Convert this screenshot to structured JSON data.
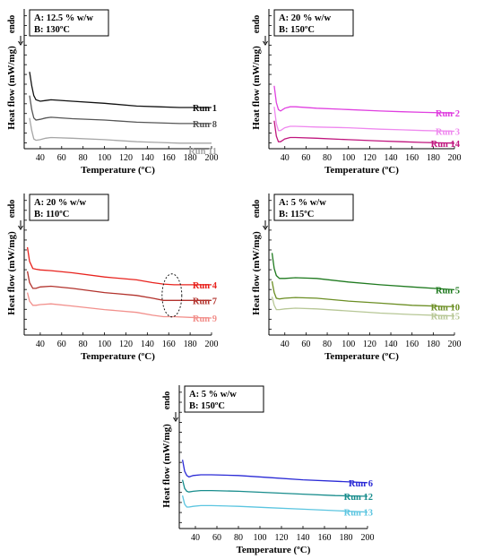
{
  "chart_data": [
    {
      "type": "line",
      "title": "",
      "box_lines": [
        "A: 12.5 % w/w",
        "B: 130ºC"
      ],
      "xlabel": "Temperature (ºC)",
      "ylabel": "Heat flow (mW/mg)",
      "endo_label": "endo",
      "xlim": [
        25,
        200
      ],
      "xticks": [
        40,
        60,
        80,
        100,
        120,
        140,
        160,
        180,
        200
      ],
      "ylim": [
        0,
        1
      ],
      "y_tick_count": 14,
      "series": [
        {
          "name": "Run 1",
          "color": "#111111",
          "x": [
            30,
            32,
            34,
            36,
            40,
            45,
            50,
            70,
            100,
            130,
            150,
            170,
            200
          ],
          "y": [
            0.55,
            0.45,
            0.38,
            0.35,
            0.34,
            0.345,
            0.35,
            0.34,
            0.325,
            0.305,
            0.3,
            0.295,
            0.295
          ]
        },
        {
          "name": "Run 8",
          "color": "#555555",
          "x": [
            30,
            32,
            34,
            36,
            40,
            45,
            50,
            70,
            100,
            130,
            150,
            170,
            200
          ],
          "y": [
            0.38,
            0.28,
            0.22,
            0.205,
            0.21,
            0.22,
            0.225,
            0.215,
            0.205,
            0.19,
            0.185,
            0.18,
            0.18
          ]
        },
        {
          "name": "Run 11",
          "color": "#a6a6a6",
          "x": [
            30,
            32,
            34,
            36,
            40,
            45,
            50,
            70,
            100,
            130,
            150,
            170,
            200
          ],
          "y": [
            0.22,
            0.13,
            0.07,
            0.06,
            0.065,
            0.075,
            0.08,
            0.075,
            0.065,
            0.05,
            0.045,
            0.04,
            0.04
          ]
        }
      ]
    },
    {
      "type": "line",
      "title": "",
      "box_lines": [
        "A: 20 % w/w",
        "B: 150ºC"
      ],
      "xlabel": "Temperature (ºC)",
      "ylabel": "Heat flow (mW/mg)",
      "endo_label": "endo",
      "xlim": [
        25,
        200
      ],
      "xticks": [
        40,
        60,
        80,
        100,
        120,
        140,
        160,
        180,
        200
      ],
      "ylim": [
        0,
        1
      ],
      "y_tick_count": 14,
      "series": [
        {
          "name": "Run 2",
          "color": "#e040e0",
          "x": [
            30,
            32,
            34,
            36,
            40,
            45,
            50,
            70,
            100,
            130,
            150,
            170,
            200
          ],
          "y": [
            0.45,
            0.33,
            0.28,
            0.27,
            0.29,
            0.3,
            0.3,
            0.29,
            0.28,
            0.27,
            0.265,
            0.26,
            0.255
          ]
        },
        {
          "name": "Run 3",
          "color": "#ef88ef",
          "x": [
            30,
            32,
            34,
            36,
            40,
            45,
            50,
            70,
            100,
            130,
            150,
            170,
            200
          ],
          "y": [
            0.3,
            0.18,
            0.13,
            0.13,
            0.15,
            0.16,
            0.16,
            0.155,
            0.15,
            0.14,
            0.135,
            0.13,
            0.125
          ]
        },
        {
          "name": "Run 14",
          "color": "#c0167e",
          "x": [
            30,
            32,
            34,
            36,
            40,
            45,
            50,
            70,
            100,
            130,
            150,
            170,
            200
          ],
          "y": [
            0.2,
            0.09,
            0.05,
            0.05,
            0.07,
            0.08,
            0.08,
            0.075,
            0.065,
            0.055,
            0.05,
            0.045,
            0.04
          ]
        }
      ]
    },
    {
      "type": "line",
      "title": "",
      "box_lines": [
        "A: 20 % w/w",
        "B: 110ºC"
      ],
      "xlabel": "Temperature (ºC)",
      "ylabel": "Heat flow (mW/mg)",
      "endo_label": "endo",
      "xlim": [
        25,
        200
      ],
      "xticks": [
        40,
        60,
        80,
        100,
        120,
        140,
        160,
        180,
        200
      ],
      "ylim": [
        0,
        1
      ],
      "y_tick_count": 14,
      "series": [
        {
          "name": "Run 4",
          "color": "#e8231e",
          "x": [
            28,
            30,
            33,
            36,
            40,
            50,
            70,
            100,
            130,
            145,
            155,
            165,
            180,
            200
          ],
          "y": [
            0.62,
            0.52,
            0.47,
            0.465,
            0.46,
            0.455,
            0.44,
            0.41,
            0.39,
            0.37,
            0.36,
            0.355,
            0.355,
            0.355
          ]
        },
        {
          "name": "Run 7",
          "color": "#b2322c",
          "x": [
            28,
            30,
            33,
            36,
            40,
            50,
            70,
            100,
            130,
            145,
            155,
            165,
            180,
            200
          ],
          "y": [
            0.45,
            0.37,
            0.33,
            0.33,
            0.34,
            0.345,
            0.33,
            0.3,
            0.28,
            0.26,
            0.245,
            0.245,
            0.245,
            0.245
          ]
        },
        {
          "name": "Run 9",
          "color": "#f2908c",
          "x": [
            28,
            30,
            33,
            36,
            40,
            50,
            70,
            100,
            130,
            145,
            155,
            165,
            180,
            200
          ],
          "y": [
            0.3,
            0.24,
            0.21,
            0.21,
            0.215,
            0.22,
            0.205,
            0.18,
            0.16,
            0.14,
            0.13,
            0.13,
            0.125,
            0.12
          ]
        }
      ],
      "annotation": "dashed ellipse near 165 ºC"
    },
    {
      "type": "line",
      "title": "",
      "box_lines": [
        "A: 5 % w/w",
        "B: 115ºC"
      ],
      "xlabel": "Temperature (ºC)",
      "ylabel": "Heat flow (mW/mg)",
      "endo_label": "endo",
      "xlim": [
        25,
        200
      ],
      "xticks": [
        40,
        60,
        80,
        100,
        120,
        140,
        160,
        180,
        200
      ],
      "ylim": [
        0,
        1
      ],
      "y_tick_count": 14,
      "series": [
        {
          "name": "Run 5",
          "color": "#1f7a1f",
          "x": [
            28,
            30,
            32,
            35,
            40,
            50,
            70,
            100,
            130,
            160,
            200
          ],
          "y": [
            0.58,
            0.47,
            0.42,
            0.4,
            0.4,
            0.405,
            0.4,
            0.375,
            0.355,
            0.34,
            0.32
          ]
        },
        {
          "name": "Run 10",
          "color": "#6b8e23",
          "x": [
            28,
            30,
            32,
            35,
            40,
            50,
            70,
            100,
            130,
            160,
            200
          ],
          "y": [
            0.38,
            0.3,
            0.26,
            0.255,
            0.26,
            0.265,
            0.26,
            0.24,
            0.225,
            0.21,
            0.2
          ]
        },
        {
          "name": "Run 15",
          "color": "#b7c796",
          "x": [
            28,
            30,
            32,
            35,
            40,
            50,
            70,
            100,
            130,
            160,
            200
          ],
          "y": [
            0.27,
            0.21,
            0.18,
            0.18,
            0.185,
            0.19,
            0.185,
            0.17,
            0.155,
            0.145,
            0.135
          ]
        }
      ]
    },
    {
      "type": "line",
      "title": "",
      "box_lines": [
        "A: 5 % w/w",
        "B: 150ºC"
      ],
      "xlabel": "Temperature (ºC)",
      "ylabel": "Heat flow (mW/mg)",
      "endo_label": "endo",
      "xlim": [
        25,
        200
      ],
      "xticks": [
        40,
        60,
        80,
        100,
        120,
        140,
        160,
        180,
        200
      ],
      "ylim": [
        0,
        1
      ],
      "y_tick_count": 14,
      "series": [
        {
          "name": "Run 6",
          "color": "#2a2ad6",
          "x": [
            28,
            30,
            32,
            34,
            38,
            45,
            55,
            80,
            110,
            140,
            170,
            200
          ],
          "y": [
            0.48,
            0.4,
            0.37,
            0.36,
            0.37,
            0.375,
            0.375,
            0.37,
            0.355,
            0.34,
            0.33,
            0.32
          ]
        },
        {
          "name": "Run 12",
          "color": "#178c8c",
          "x": [
            28,
            30,
            32,
            34,
            38,
            45,
            55,
            80,
            110,
            140,
            170,
            200
          ],
          "y": [
            0.34,
            0.28,
            0.26,
            0.255,
            0.26,
            0.265,
            0.265,
            0.26,
            0.25,
            0.24,
            0.23,
            0.225
          ]
        },
        {
          "name": "Run 13",
          "color": "#5bc5e0",
          "x": [
            28,
            30,
            32,
            34,
            38,
            45,
            55,
            80,
            110,
            140,
            170,
            200
          ],
          "y": [
            0.23,
            0.17,
            0.15,
            0.15,
            0.155,
            0.16,
            0.16,
            0.155,
            0.145,
            0.135,
            0.125,
            0.115
          ]
        }
      ]
    }
  ]
}
